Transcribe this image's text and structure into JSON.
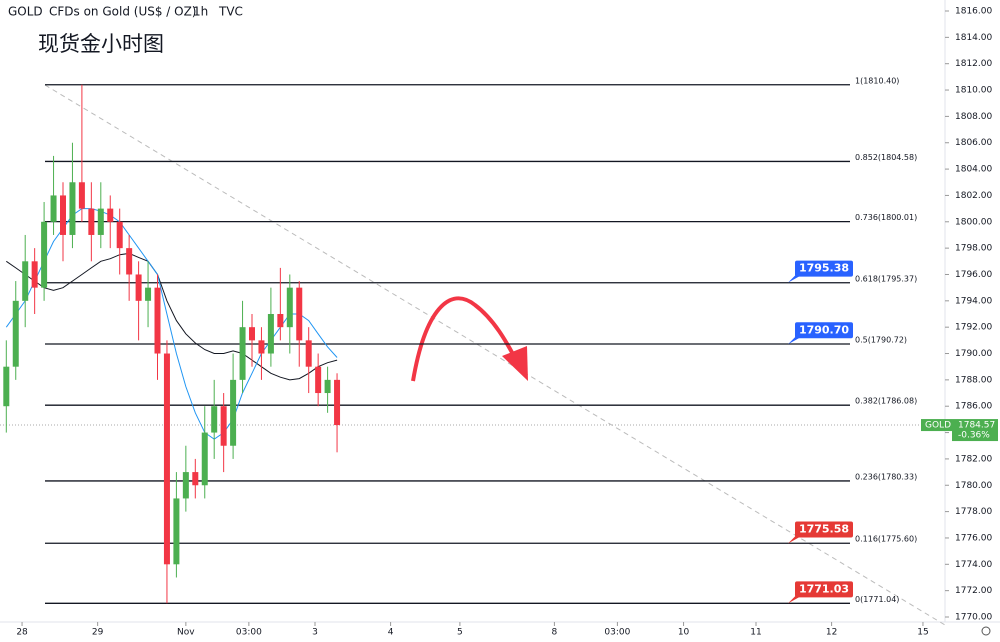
{
  "chart_data": {
    "type": "candlestick",
    "title": "现货金小时图",
    "header": {
      "symbol": "GOLD",
      "name": "CFDs on Gold (US$ / OZ)",
      "interval": "1h",
      "source": "TVC"
    },
    "ylim": [
      1770,
      1816
    ],
    "yticks": [
      {
        "value": 1770,
        "label": "1770.00"
      },
      {
        "value": 1772,
        "label": "1772.00"
      },
      {
        "value": 1774,
        "label": "1774.00"
      },
      {
        "value": 1776,
        "label": "1776.00"
      },
      {
        "value": 1778,
        "label": "1778.00"
      },
      {
        "value": 1780,
        "label": "1780.00"
      },
      {
        "value": 1782,
        "label": "1782.00"
      },
      {
        "value": 1784,
        "label": "1784.00"
      },
      {
        "value": 1786,
        "label": "1786.00"
      },
      {
        "value": 1788,
        "label": "1788.00"
      },
      {
        "value": 1790,
        "label": "1790.00"
      },
      {
        "value": 1792,
        "label": "1792.00"
      },
      {
        "value": 1794,
        "label": "1794.00"
      },
      {
        "value": 1796,
        "label": "1796.00"
      },
      {
        "value": 1798,
        "label": "1798.00"
      },
      {
        "value": 1800,
        "label": "1800.00"
      },
      {
        "value": 1802,
        "label": "1802.00"
      },
      {
        "value": 1804,
        "label": "1804.00"
      },
      {
        "value": 1806,
        "label": "1806.00"
      },
      {
        "value": 1808,
        "label": "1808.00"
      },
      {
        "value": 1810,
        "label": "1810.00"
      },
      {
        "value": 1812,
        "label": "1812.00"
      },
      {
        "value": 1814,
        "label": "1814.00"
      },
      {
        "value": 1816,
        "label": "1816.00"
      }
    ],
    "xlim": [
      -2,
      298
    ],
    "xticks": [
      {
        "value": 5,
        "label": "28"
      },
      {
        "value": 29,
        "label": "29"
      },
      {
        "value": 57,
        "label": "Nov"
      },
      {
        "value": 77,
        "label": "03:00"
      },
      {
        "value": 98,
        "label": "3"
      },
      {
        "value": 122,
        "label": "4"
      },
      {
        "value": 144,
        "label": "5"
      },
      {
        "value": 174,
        "label": "8"
      },
      {
        "value": 194,
        "label": "03:00"
      },
      {
        "value": 215,
        "label": "10"
      },
      {
        "value": 238,
        "label": "11"
      },
      {
        "value": 262,
        "label": "12"
      },
      {
        "value": 291,
        "label": "15"
      }
    ],
    "x": [
      0,
      3,
      6,
      9,
      12,
      15,
      18,
      21,
      24,
      27,
      30,
      33,
      36,
      39,
      42,
      45,
      48,
      51,
      54,
      57,
      60,
      63,
      66,
      69,
      72,
      75,
      78,
      81,
      84,
      87,
      90,
      93,
      96,
      99,
      102,
      105
    ],
    "open": [
      1786,
      1789,
      1794,
      1797,
      1795,
      1800,
      1802,
      1799,
      1803,
      1801,
      1799,
      1801,
      1800,
      1798,
      1796,
      1794,
      1795,
      1790,
      1774,
      1779,
      1781,
      1780,
      1784,
      1786,
      1783,
      1788,
      1792,
      1791,
      1790,
      1793,
      1792,
      1795,
      1791,
      1789,
      1787,
      1788
    ],
    "high": [
      1791,
      1795.5,
      1799,
      1798,
      1801.5,
      1805,
      1803,
      1806,
      1810.4,
      1803,
      1803,
      1802,
      1801,
      1799,
      1797,
      1797,
      1796,
      1791,
      1781,
      1783,
      1782,
      1786,
      1788,
      1787,
      1790,
      1794,
      1793,
      1792,
      1795,
      1796.5,
      1796,
      1795.5,
      1792,
      1790,
      1789,
      1788.5
    ],
    "low": [
      1784,
      1788,
      1792,
      1793,
      1794,
      1799,
      1797,
      1798,
      1800,
      1797,
      1798,
      1798,
      1796,
      1794,
      1791,
      1792,
      1788,
      1771.04,
      1773,
      1778,
      1779,
      1779,
      1782,
      1781,
      1782,
      1787,
      1789,
      1788,
      1789,
      1791,
      1790,
      1789,
      1787,
      1786,
      1785.5,
      1782.5
    ],
    "close": [
      1789,
      1794,
      1797,
      1795,
      1800,
      1802,
      1799,
      1803,
      1801,
      1799,
      1801,
      1800,
      1798,
      1796,
      1794,
      1795,
      1790,
      1774,
      1779,
      1781,
      1780,
      1784,
      1786,
      1783,
      1788,
      1792,
      1791,
      1790,
      1793,
      1792,
      1795,
      1791,
      1789,
      1787,
      1788,
      1784.57
    ],
    "up_color": "#4caf50",
    "down_color": "#f23645",
    "series": [
      {
        "color": "#131722",
        "values": [
          1797,
          1796.5,
          1796,
          1795.5,
          1795,
          1794.8,
          1795,
          1795.5,
          1796,
          1796.5,
          1797,
          1797.2,
          1797.5,
          1797.6,
          1797.3,
          1797,
          1796,
          1794,
          1792.5,
          1791.5,
          1790.8,
          1790.3,
          1790,
          1790,
          1790.2,
          1790,
          1789.5,
          1789,
          1788.5,
          1788.2,
          1788,
          1788.1,
          1788.5,
          1789,
          1789.3,
          1789.5
        ]
      },
      {
        "color": "#2196f3",
        "values": [
          1792,
          1793,
          1794,
          1795.5,
          1797,
          1798.5,
          1799.5,
          1800.5,
          1801,
          1801,
          1800.8,
          1800.5,
          1800,
          1799,
          1798,
          1797,
          1796,
          1793,
          1790,
          1787.5,
          1785.5,
          1784,
          1783.5,
          1784,
          1785,
          1787,
          1788.5,
          1790,
          1791,
          1792,
          1793,
          1793,
          1792.5,
          1791.5,
          1790.5,
          1789.7
        ]
      }
    ],
    "fib_levels": [
      {
        "value": 1810.4,
        "label": "1(1810.40)"
      },
      {
        "value": 1804.58,
        "label": "0.852(1804.58)"
      },
      {
        "value": 1800.01,
        "label": "0.736(1800.01)"
      },
      {
        "value": 1795.37,
        "label": "0.618(1795.37)"
      },
      {
        "value": 1790.72,
        "label": "0.5(1790.72)"
      },
      {
        "value": 1786.08,
        "label": "0.382(1786.08)"
      },
      {
        "value": 1780.33,
        "label": "0.236(1780.33)"
      },
      {
        "value": 1775.6,
        "label": "0.116(1775.60)"
      },
      {
        "value": 1771.04,
        "label": "0(1771.04)"
      }
    ],
    "callouts": [
      {
        "value": 1795.38,
        "color": "#2962ff"
      },
      {
        "value": 1790.7,
        "label": "1790.70",
        "color": "#2962ff"
      },
      {
        "value": 1775.58,
        "color": "#e53935"
      },
      {
        "value": 1771.03,
        "color": "#e53935"
      }
    ],
    "last": {
      "symbol": "GOLD",
      "value": 1784.57,
      "change": {
        "value": -0.36,
        "label": "-0.36%"
      },
      "color": "#4caf50"
    }
  }
}
